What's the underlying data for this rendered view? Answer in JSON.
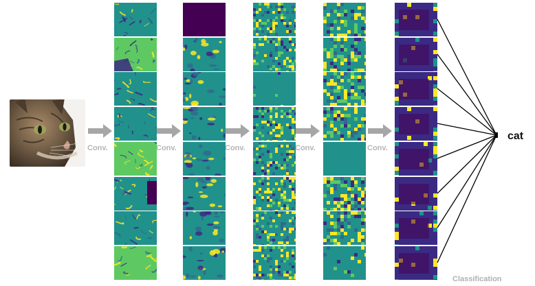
{
  "diagram": {
    "input_image_subject": "tabby cat photo",
    "conv_labels": [
      "Conv.",
      "Conv.",
      "Conv.",
      "Conv.",
      "Conv."
    ],
    "output_label": "cat",
    "classification_label": "Classification",
    "maps_per_layer": 8,
    "layer_count": 5
  },
  "colors": {
    "arrow": "#a6a6a6",
    "viridis_dark": "#440154",
    "viridis_purple": "#3b2a84",
    "viridis_blue": "#31688e",
    "viridis_teal": "#21918c",
    "viridis_green": "#5ec962",
    "viridis_yellow": "#fde725",
    "lines": "#000000"
  },
  "icons": [
    "input-cat-photo",
    "right-arrow-icon"
  ]
}
